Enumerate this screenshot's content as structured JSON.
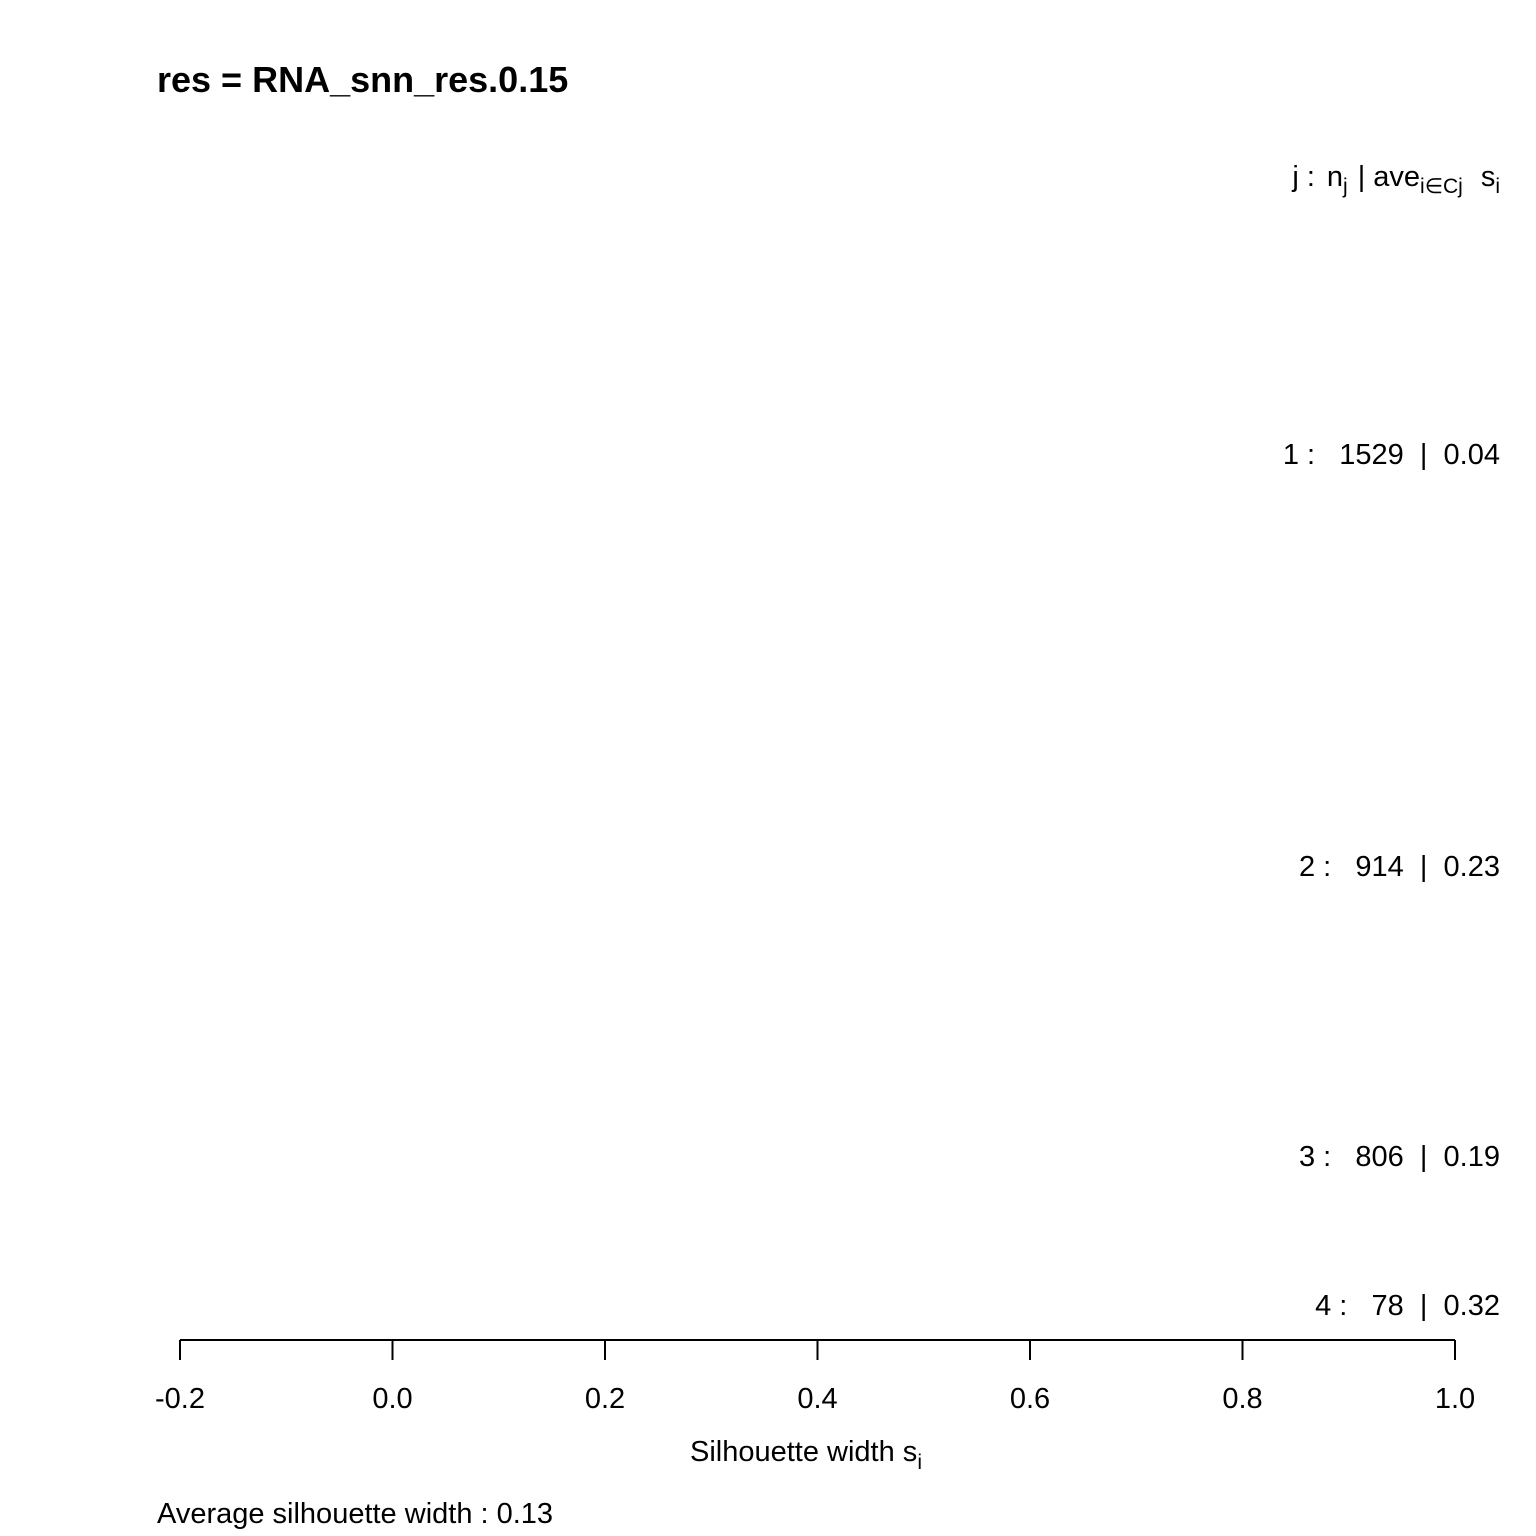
{
  "chart_data": {
    "type": "bar",
    "title": "res =  RNA_snn_res.0.15",
    "header": {
      "j": "j :",
      "n": "n",
      "n_sub": "j",
      "sep": "|",
      "ave": "ave",
      "ave_sub": "i∈Cj",
      "s": "s",
      "s_sub": "i"
    },
    "clusters": [
      {
        "label": "1 :   1529  |  0.04",
        "cluster": 1,
        "size": 1529,
        "avg_width": 0.04
      },
      {
        "label": "2 :   914  |  0.23",
        "cluster": 2,
        "size": 914,
        "avg_width": 0.23
      },
      {
        "label": "3 :   806  |  0.19",
        "cluster": 3,
        "size": 806,
        "avg_width": 0.19
      },
      {
        "label": "4 :   78  |  0.32",
        "cluster": 4,
        "size": 78,
        "avg_width": 0.32
      }
    ],
    "xlim": [
      -0.2,
      1.0
    ],
    "x_ticks": [
      -0.2,
      0.0,
      0.2,
      0.4,
      0.6,
      0.8,
      1.0
    ],
    "x_tick_labels": [
      "-0.2",
      "0.0",
      "0.2",
      "0.4",
      "0.6",
      "0.8",
      "1.0"
    ],
    "xlabel": "Silhouette width s",
    "xlabel_sub": "i",
    "footer": "Average silhouette width :  0.13",
    "average_width": 0.13,
    "bar_color": "#808080"
  }
}
